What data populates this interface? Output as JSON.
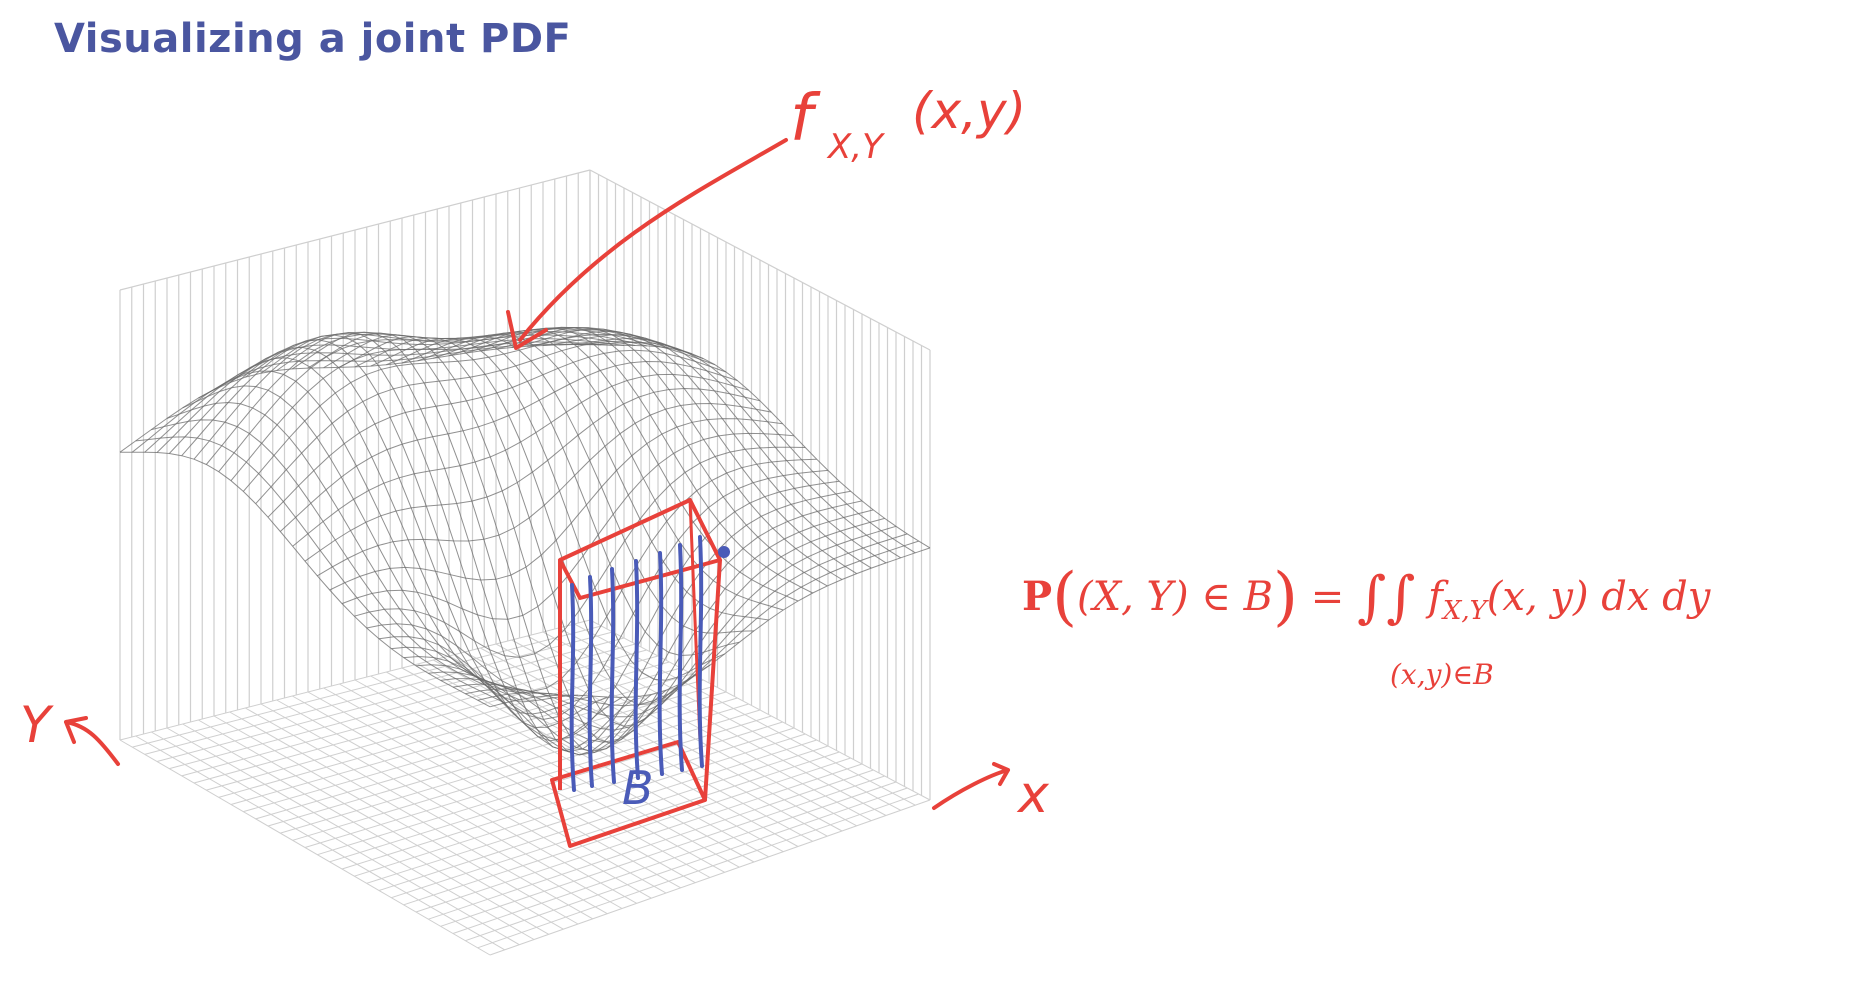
{
  "title": "Visualizing a joint PDF",
  "annotations": {
    "surface_label": "f",
    "surface_label_sub": "X,Y",
    "surface_label_args": "(x,y)",
    "axis_y": "Y",
    "axis_x": "x",
    "region": "B"
  },
  "formula": {
    "prob": "P",
    "open": "(",
    "event": "(X, Y) ∈ B",
    "close": ")",
    "equals": " = ",
    "integral": "∫∫",
    "integrand_f": "f",
    "integrand_sub": "X,Y",
    "integrand_rest": "(x, y) dx dy",
    "region_subscript": "(x,y)∈B"
  },
  "colors": {
    "title": "#4a56a0",
    "annotation_red": "#e8413a",
    "annotation_blue": "#4a5bb8",
    "mesh": "#6b6b6b",
    "grid": "#cfcfcf"
  }
}
